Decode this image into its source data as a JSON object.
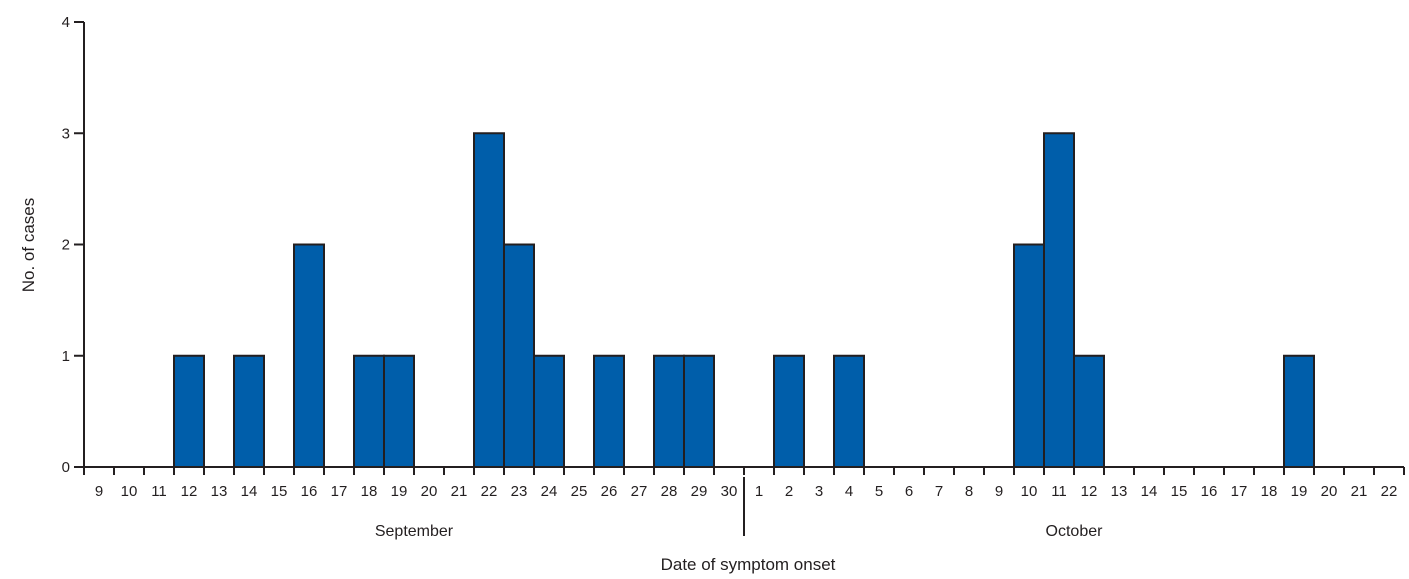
{
  "chart_data": {
    "type": "bar",
    "title": "",
    "xlabel": "Date of symptom onset",
    "ylabel": "No. of cases",
    "ylim": [
      0,
      4
    ],
    "yticks": [
      "0",
      "1",
      "2",
      "3",
      "4"
    ],
    "grid": false,
    "legend": "none",
    "bar_color": "#005eaa",
    "bar_edge_color": "#231f20",
    "month_groups": [
      {
        "label": "September",
        "days": [
          "9",
          "10",
          "11",
          "12",
          "13",
          "14",
          "15",
          "16",
          "17",
          "18",
          "19",
          "20",
          "21",
          "22",
          "23",
          "24",
          "25",
          "26",
          "27",
          "28",
          "29",
          "30"
        ]
      },
      {
        "label": "October",
        "days": [
          "1",
          "2",
          "3",
          "4",
          "5",
          "6",
          "7",
          "8",
          "9",
          "10",
          "11",
          "12",
          "13",
          "14",
          "15",
          "16",
          "17",
          "18",
          "19",
          "20",
          "21",
          "22"
        ]
      }
    ],
    "categories": [
      "Sep 9",
      "Sep 10",
      "Sep 11",
      "Sep 12",
      "Sep 13",
      "Sep 14",
      "Sep 15",
      "Sep 16",
      "Sep 17",
      "Sep 18",
      "Sep 19",
      "Sep 20",
      "Sep 21",
      "Sep 22",
      "Sep 23",
      "Sep 24",
      "Sep 25",
      "Sep 26",
      "Sep 27",
      "Sep 28",
      "Sep 29",
      "Sep 30",
      "Oct 1",
      "Oct 2",
      "Oct 3",
      "Oct 4",
      "Oct 5",
      "Oct 6",
      "Oct 7",
      "Oct 8",
      "Oct 9",
      "Oct 10",
      "Oct 11",
      "Oct 12",
      "Oct 13",
      "Oct 14",
      "Oct 15",
      "Oct 16",
      "Oct 17",
      "Oct 18",
      "Oct 19",
      "Oct 20",
      "Oct 21",
      "Oct 22"
    ],
    "values": [
      0,
      0,
      0,
      1,
      0,
      1,
      0,
      2,
      0,
      1,
      1,
      0,
      0,
      3,
      2,
      1,
      0,
      1,
      0,
      1,
      1,
      0,
      0,
      1,
      0,
      1,
      0,
      0,
      0,
      0,
      0,
      2,
      3,
      1,
      0,
      0,
      0,
      0,
      0,
      0,
      1,
      0,
      0,
      0
    ]
  }
}
